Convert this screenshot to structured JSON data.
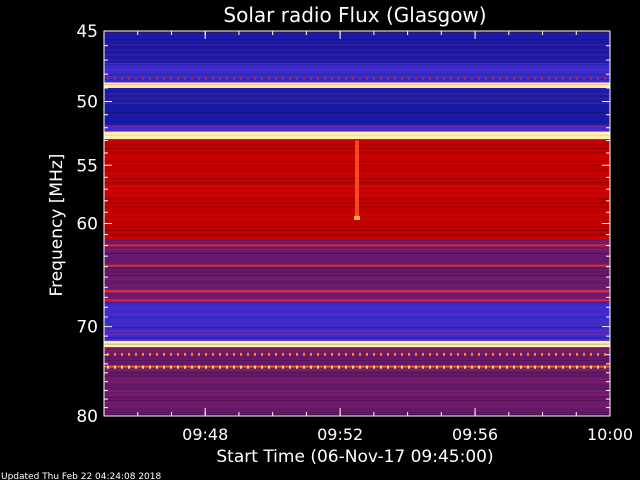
{
  "chart_data": {
    "type": "heatmap",
    "title": "Solar radio Flux (Glasgow)",
    "xlabel": "Start Time (06-Nov-17 09:45:00)",
    "ylabel": "Frequency [MHz]",
    "xlim": [
      "09:45:00",
      "10:00:00"
    ],
    "ylim": [
      45,
      80
    ],
    "y_scale": "log",
    "y_inverted": true,
    "x_ticks": [
      "09:48",
      "09:52",
      "09:56",
      "10:00"
    ],
    "y_ticks": [
      45,
      50,
      55,
      60,
      70,
      80
    ],
    "colormap": "blue-red-white",
    "frequency_bands": [
      {
        "from": 45.1,
        "to": 47.2,
        "level": "low"
      },
      {
        "from": 47.2,
        "to": 48.6,
        "level": "medium-low"
      },
      {
        "from": 48.6,
        "to": 49.0,
        "level": "saturated"
      },
      {
        "from": 49.0,
        "to": 51.8,
        "level": "low"
      },
      {
        "from": 51.8,
        "to": 52.3,
        "level": "medium-low"
      },
      {
        "from": 52.3,
        "to": 52.9,
        "level": "saturated"
      },
      {
        "from": 52.9,
        "to": 61.5,
        "level": "high"
      },
      {
        "from": 61.5,
        "to": 67.5,
        "level": "medium"
      },
      {
        "from": 67.5,
        "to": 71.5,
        "level": "medium-low"
      },
      {
        "from": 71.5,
        "to": 72.2,
        "level": "saturated"
      },
      {
        "from": 72.2,
        "to": 79.8,
        "level": "medium"
      }
    ],
    "features": [
      {
        "time": "09:52:30",
        "from": 53.0,
        "to": 59.5,
        "label": "burst"
      }
    ],
    "grid": false
  },
  "footer": {
    "updated": "Updated Thu Feb 22 04:24:08 2018"
  },
  "colors": {
    "background": "#000000",
    "axes": "#ffffff",
    "low": "#1a1aa8",
    "medium-low": "#3b2bd0",
    "medium": "#6a1a6e",
    "high": "#c40000",
    "saturated": "#fff0b0"
  }
}
